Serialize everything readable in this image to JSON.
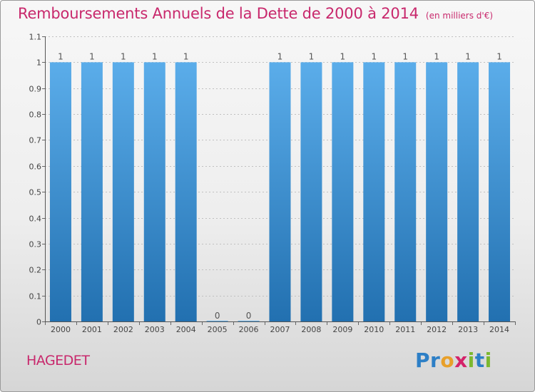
{
  "header": {
    "title": "Remboursements Annuels de la Dette de 2000 à 2014",
    "unit": "(en milliers d'€)"
  },
  "commune": "HAGEDET",
  "logo": {
    "letters": [
      {
        "char": "P",
        "color": "#2d7fc6"
      },
      {
        "char": "r",
        "color": "#2d7fc6"
      },
      {
        "char": "o",
        "color": "#e8a02a"
      },
      {
        "char": "x",
        "color": "#d4236a"
      },
      {
        "char": "i",
        "color": "#7cb82f"
      },
      {
        "char": "t",
        "color": "#2d7fc6"
      },
      {
        "char": "i",
        "color": "#7cb82f"
      }
    ]
  },
  "colors": {
    "accent": "#c8286c",
    "bar_top": "#5badea",
    "bar_bottom": "#2270b0",
    "grid": "#c0c0c0"
  },
  "chart_data": {
    "type": "bar",
    "categories": [
      "2000",
      "2001",
      "2002",
      "2003",
      "2004",
      "2005",
      "2006",
      "2007",
      "2008",
      "2009",
      "2010",
      "2011",
      "2012",
      "2013",
      "2014"
    ],
    "values": [
      1,
      1,
      1,
      1,
      1,
      0,
      0,
      1,
      1,
      1,
      1,
      1,
      1,
      1,
      1
    ],
    "data_labels": [
      "1",
      "1",
      "1",
      "1",
      "1",
      "0",
      "0",
      "1",
      "1",
      "1",
      "1",
      "1",
      "1",
      "1",
      "1"
    ],
    "yticks": [
      0,
      0.1,
      0.2,
      0.3,
      0.4,
      0.5,
      0.6,
      0.7,
      0.8,
      0.9,
      1,
      1.1
    ],
    "ytick_labels": [
      "0",
      "0.1",
      "0.2",
      "0.3",
      "0.4",
      "0.5",
      "0.6",
      "0.7",
      "0.8",
      "0.9",
      "1",
      "1.1"
    ],
    "ylim": [
      0,
      1.1
    ],
    "grid": true
  }
}
